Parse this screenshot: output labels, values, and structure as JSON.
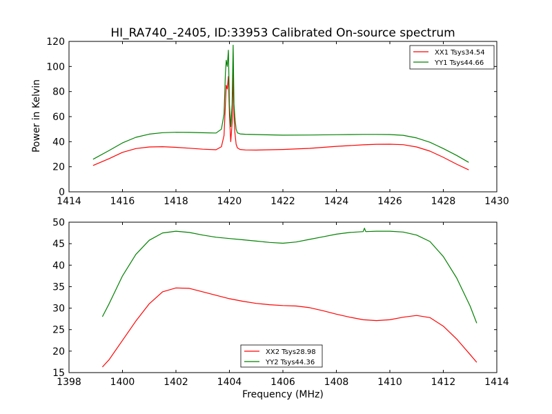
{
  "chart_data": [
    {
      "type": "line",
      "title": "HI_RA740_-2405, ID:33953 Calibrated On-source spectrum",
      "xlabel": "",
      "ylabel": "Power in Kelvin",
      "xlim": [
        1414,
        1430
      ],
      "ylim": [
        0,
        120
      ],
      "xticks": [
        1414,
        1416,
        1418,
        1420,
        1422,
        1424,
        1426,
        1428,
        1430
      ],
      "yticks": [
        0,
        20,
        40,
        60,
        80,
        100,
        120
      ],
      "legend_position": "top-right",
      "grid": false,
      "series": [
        {
          "name": "XX1 Tsys34.54",
          "color": "#ff0000",
          "x": [
            1414.9,
            1415.5,
            1416.0,
            1416.5,
            1417.0,
            1417.5,
            1418.0,
            1418.5,
            1419.0,
            1419.5,
            1419.7,
            1419.8,
            1419.85,
            1419.88,
            1419.92,
            1419.96,
            1420.0,
            1420.05,
            1420.1,
            1420.14,
            1420.17,
            1420.2,
            1420.25,
            1420.3,
            1420.4,
            1420.6,
            1421.0,
            1422.0,
            1423.0,
            1424.0,
            1424.5,
            1425.0,
            1425.5,
            1426.0,
            1426.5,
            1427.0,
            1427.5,
            1428.0,
            1428.5,
            1428.95
          ],
          "values": [
            21,
            26.5,
            31.5,
            34.5,
            35.8,
            36,
            35.5,
            34.8,
            34,
            33.6,
            36,
            45,
            70,
            85,
            82,
            92,
            62,
            40,
            55,
            95,
            60,
            48,
            38,
            35,
            33.8,
            33.4,
            33.3,
            33.8,
            34.7,
            36.3,
            36.9,
            37.5,
            37.9,
            38,
            37.6,
            35.8,
            32.5,
            27.5,
            22,
            17.5
          ]
        },
        {
          "name": "YY1 Tsys44.66",
          "color": "#008000",
          "x": [
            1414.9,
            1415.5,
            1416.0,
            1416.5,
            1417.0,
            1417.5,
            1418.0,
            1418.5,
            1419.0,
            1419.5,
            1419.7,
            1419.8,
            1419.85,
            1419.88,
            1419.92,
            1419.96,
            1420.0,
            1420.05,
            1420.1,
            1420.14,
            1420.17,
            1420.2,
            1420.25,
            1420.3,
            1420.4,
            1420.6,
            1421.0,
            1422.0,
            1423.0,
            1424.0,
            1424.5,
            1425.0,
            1425.5,
            1426.0,
            1426.5,
            1427.0,
            1427.5,
            1428.0,
            1428.5,
            1428.95
          ],
          "values": [
            26,
            33,
            39,
            43.5,
            46,
            47.2,
            47.5,
            47.4,
            47.1,
            46.9,
            50,
            62,
            95,
            105,
            100,
            113,
            70,
            52,
            70,
            117,
            70,
            60,
            50,
            47,
            46.2,
            45.9,
            45.7,
            45.2,
            45.3,
            45.6,
            45.7,
            45.8,
            45.8,
            45.7,
            45.1,
            43,
            39.5,
            34.5,
            29,
            23.5
          ]
        }
      ]
    },
    {
      "type": "line",
      "title": "",
      "xlabel": "Frequency (MHz)",
      "ylabel": "",
      "xlim": [
        1398,
        1414
      ],
      "ylim": [
        15,
        50
      ],
      "xticks": [
        1398,
        1400,
        1402,
        1404,
        1406,
        1408,
        1410,
        1412,
        1414
      ],
      "yticks": [
        15,
        20,
        25,
        30,
        35,
        40,
        45,
        50
      ],
      "legend_position": "bottom-center",
      "grid": false,
      "series": [
        {
          "name": "XX2 Tsys28.98",
          "color": "#ff0000",
          "x": [
            1399.25,
            1399.5,
            1400.0,
            1400.5,
            1401.0,
            1401.5,
            1402.0,
            1402.5,
            1403.0,
            1403.5,
            1404.0,
            1404.5,
            1405.0,
            1405.5,
            1406.0,
            1406.5,
            1407.0,
            1407.5,
            1408.0,
            1408.5,
            1409.0,
            1409.5,
            1410.0,
            1410.5,
            1411.0,
            1411.5,
            1412.0,
            1412.5,
            1413.0,
            1413.25
          ],
          "values": [
            16.3,
            18,
            22.5,
            27,
            31,
            33.8,
            34.7,
            34.6,
            33.8,
            33,
            32.2,
            31.6,
            31.1,
            30.8,
            30.6,
            30.5,
            30.1,
            29.4,
            28.6,
            27.9,
            27.3,
            27.1,
            27.3,
            27.9,
            28.3,
            27.8,
            25.8,
            22.8,
            19.2,
            17.4
          ]
        },
        {
          "name": "YY2 Tsys44.36",
          "color": "#008000",
          "x": [
            1399.25,
            1399.5,
            1400.0,
            1400.5,
            1401.0,
            1401.5,
            1402.0,
            1402.5,
            1403.0,
            1403.5,
            1404.0,
            1404.5,
            1405.0,
            1405.5,
            1406.0,
            1406.5,
            1407.0,
            1407.5,
            1408.0,
            1408.5,
            1409.0,
            1409.05,
            1409.1,
            1409.5,
            1410.0,
            1410.5,
            1411.0,
            1411.5,
            1412.0,
            1412.5,
            1413.0,
            1413.25
          ],
          "values": [
            28,
            31,
            37.5,
            42.5,
            45.8,
            47.5,
            47.9,
            47.6,
            47,
            46.5,
            46.2,
            45.9,
            45.6,
            45.3,
            45.1,
            45.4,
            46,
            46.6,
            47.2,
            47.6,
            47.8,
            48.6,
            47.8,
            47.9,
            47.9,
            47.7,
            47,
            45.5,
            42,
            37,
            30.5,
            26.5
          ]
        }
      ]
    }
  ]
}
